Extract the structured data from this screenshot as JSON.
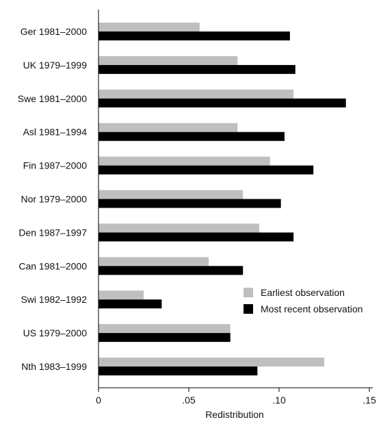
{
  "chart_data": {
    "type": "bar",
    "orientation": "horizontal",
    "categories": [
      "Ger 1981–2000",
      "UK 1979–1999",
      "Swe 1981–2000",
      "Asl 1981–1994",
      "Fin 1987–2000",
      "Nor 1979–2000",
      "Den 1987–1997",
      "Can 1981–2000",
      "Swi 1982–1992",
      "US 1979–2000",
      "Nth 1983–1999"
    ],
    "series": [
      {
        "name": "Earliest observation",
        "color": "#bfbfbf",
        "values": [
          0.056,
          0.077,
          0.108,
          0.077,
          0.095,
          0.08,
          0.089,
          0.061,
          0.025,
          0.073,
          0.125
        ]
      },
      {
        "name": "Most recent observation",
        "color": "#000000",
        "values": [
          0.106,
          0.109,
          0.137,
          0.103,
          0.119,
          0.101,
          0.108,
          0.08,
          0.035,
          0.073,
          0.088
        ]
      }
    ],
    "title": "",
    "xlabel": "Redistribution",
    "ylabel": "",
    "xlim": [
      0,
      0.15
    ],
    "xticks": [
      0,
      0.05,
      0.1,
      0.15
    ],
    "xtick_labels": [
      "0",
      ".05",
      ".10",
      ".15"
    ],
    "grid": false,
    "legend_position": "lower-right"
  }
}
